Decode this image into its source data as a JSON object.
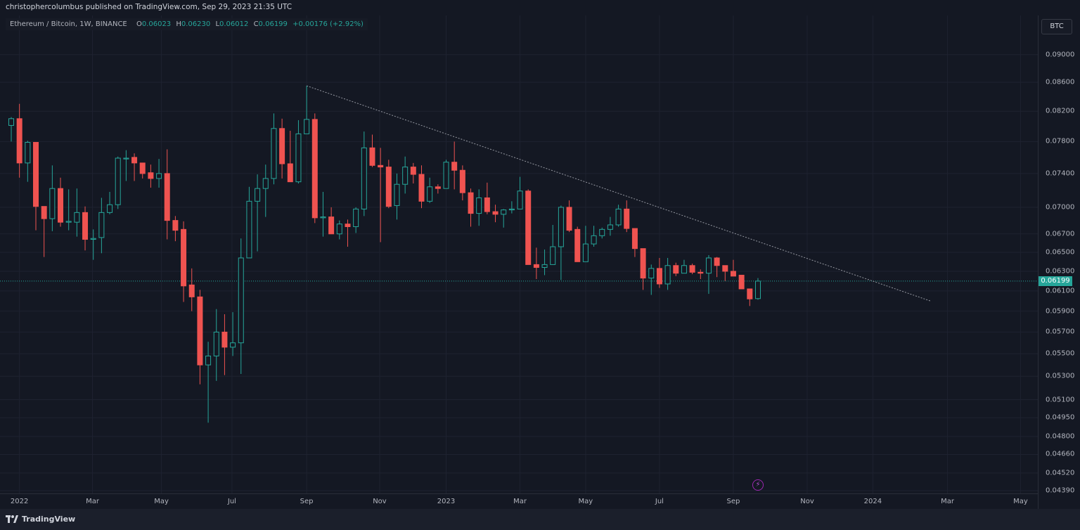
{
  "header": {
    "published": "christophercolumbus published on TradingView.com, Sep 29, 2023 21:35 UTC"
  },
  "legend": {
    "symbol": "Ethereum / Bitcoin, 1W, BINANCE",
    "o_label": "O",
    "o_value": "0.06023",
    "h_label": "H",
    "h_value": "0.06230",
    "l_label": "L",
    "l_value": "0.06012",
    "c_label": "C",
    "c_value": "0.06199",
    "change": "+0.00176 (+2.92%)"
  },
  "axis": {
    "currency_button": "BTC",
    "last_price": "0.06199"
  },
  "footer": {
    "brand": "TradingView"
  },
  "icons": {
    "alert": "lightning-icon",
    "logo": "tradingview-logo-icon"
  },
  "colors": {
    "up": "#26a69a",
    "down": "#ef5350",
    "background": "#141823",
    "grid": "#1e2230",
    "trendline": "#9598a1",
    "alert": "#9c27b0"
  },
  "chart_data": {
    "type": "candlestick",
    "title": "Ethereum / Bitcoin, 1W, BINANCE",
    "scale": "log",
    "ylim": [
      0.0437,
      0.096
    ],
    "xlim_weeks": [
      0,
      126
    ],
    "grid": true,
    "y_ticks": [
      "0.09000",
      "0.08600",
      "0.08200",
      "0.07800",
      "0.07400",
      "0.07000",
      "0.06700",
      "0.06500",
      "0.06300",
      "0.06100",
      "0.05900",
      "0.05700",
      "0.05500",
      "0.05300",
      "0.05100",
      "0.04950",
      "0.04800",
      "0.04660",
      "0.04520",
      "0.04390"
    ],
    "x_ticks": [
      {
        "label": "2022",
        "week": 1.0
      },
      {
        "label": "Mar",
        "week": 9.9
      },
      {
        "label": "May",
        "week": 18.3
      },
      {
        "label": "Jul",
        "week": 26.9
      },
      {
        "label": "Sep",
        "week": 36.0
      },
      {
        "label": "Nov",
        "week": 44.9
      },
      {
        "label": "2023",
        "week": 53.0
      },
      {
        "label": "Mar",
        "week": 62.0
      },
      {
        "label": "May",
        "week": 70.0
      },
      {
        "label": "Jul",
        "week": 79.0
      },
      {
        "label": "Sep",
        "week": 88.0
      },
      {
        "label": "Nov",
        "week": 97.0
      },
      {
        "label": "2024",
        "week": 105.0
      },
      {
        "label": "Mar",
        "week": 114.1
      },
      {
        "label": "May",
        "week": 123.0
      }
    ],
    "ohlc_columns": [
      "open",
      "high",
      "low",
      "close"
    ],
    "candles": [
      [
        0.0801,
        0.0812,
        0.078,
        0.081
      ],
      [
        0.081,
        0.083,
        0.0735,
        0.0753
      ],
      [
        0.0753,
        0.0781,
        0.073,
        0.0779
      ],
      [
        0.0779,
        0.0779,
        0.0674,
        0.0701
      ],
      [
        0.0701,
        0.0701,
        0.0645,
        0.0687
      ],
      [
        0.0687,
        0.075,
        0.0673,
        0.0722
      ],
      [
        0.0722,
        0.0735,
        0.0678,
        0.0683
      ],
      [
        0.0683,
        0.0721,
        0.0674,
        0.0684
      ],
      [
        0.0683,
        0.0722,
        0.0667,
        0.0694
      ],
      [
        0.0694,
        0.0701,
        0.0652,
        0.0664
      ],
      [
        0.0664,
        0.0675,
        0.0642,
        0.0665
      ],
      [
        0.0666,
        0.0711,
        0.0649,
        0.0694
      ],
      [
        0.0694,
        0.0718,
        0.0692,
        0.0703
      ],
      [
        0.0703,
        0.0761,
        0.0698,
        0.0759
      ],
      [
        0.0758,
        0.0769,
        0.0731,
        0.0759
      ],
      [
        0.076,
        0.0765,
        0.0731,
        0.0753
      ],
      [
        0.0753,
        0.0753,
        0.0734,
        0.074
      ],
      [
        0.0741,
        0.0751,
        0.0723,
        0.0734
      ],
      [
        0.0734,
        0.0758,
        0.0723,
        0.074
      ],
      [
        0.074,
        0.077,
        0.0664,
        0.0685
      ],
      [
        0.0685,
        0.069,
        0.0662,
        0.0674
      ],
      [
        0.0675,
        0.0684,
        0.0599,
        0.0615
      ],
      [
        0.0616,
        0.0633,
        0.059,
        0.0604
      ],
      [
        0.0604,
        0.0611,
        0.0523,
        0.054
      ],
      [
        0.054,
        0.0561,
        0.0491,
        0.0548
      ],
      [
        0.0548,
        0.0592,
        0.0526,
        0.057
      ],
      [
        0.057,
        0.0587,
        0.0531,
        0.0556
      ],
      [
        0.0556,
        0.0589,
        0.0548,
        0.056
      ],
      [
        0.056,
        0.0665,
        0.0532,
        0.0644
      ],
      [
        0.0644,
        0.0724,
        0.0644,
        0.0707
      ],
      [
        0.0707,
        0.0739,
        0.0651,
        0.0722
      ],
      [
        0.0722,
        0.0751,
        0.0689,
        0.0734
      ],
      [
        0.0734,
        0.0817,
        0.0727,
        0.0797
      ],
      [
        0.0797,
        0.081,
        0.0734,
        0.0752
      ],
      [
        0.0752,
        0.0794,
        0.073,
        0.073
      ],
      [
        0.073,
        0.0808,
        0.0728,
        0.079
      ],
      [
        0.079,
        0.0855,
        0.079,
        0.0809
      ],
      [
        0.0809,
        0.0817,
        0.0682,
        0.0688
      ],
      [
        0.0688,
        0.0718,
        0.0667,
        0.0689
      ],
      [
        0.0689,
        0.07,
        0.067,
        0.067
      ],
      [
        0.067,
        0.0685,
        0.0664,
        0.0681
      ],
      [
        0.0681,
        0.0686,
        0.0656,
        0.0678
      ],
      [
        0.0678,
        0.07,
        0.0671,
        0.0698
      ],
      [
        0.0698,
        0.0793,
        0.069,
        0.0772
      ],
      [
        0.0772,
        0.0789,
        0.0748,
        0.075
      ],
      [
        0.075,
        0.0772,
        0.0661,
        0.0748
      ],
      [
        0.0748,
        0.0757,
        0.0699,
        0.0701
      ],
      [
        0.0702,
        0.074,
        0.0686,
        0.0727
      ],
      [
        0.0727,
        0.0761,
        0.0716,
        0.0748
      ],
      [
        0.0748,
        0.0753,
        0.0728,
        0.0739
      ],
      [
        0.0739,
        0.075,
        0.0699,
        0.0707
      ],
      [
        0.0707,
        0.0735,
        0.0705,
        0.0724
      ],
      [
        0.0724,
        0.0727,
        0.0716,
        0.0722
      ],
      [
        0.0722,
        0.0757,
        0.0722,
        0.0754
      ],
      [
        0.0754,
        0.078,
        0.0721,
        0.0744
      ],
      [
        0.0744,
        0.075,
        0.0708,
        0.0717
      ],
      [
        0.0717,
        0.0722,
        0.0678,
        0.0693
      ],
      [
        0.0693,
        0.0721,
        0.0679,
        0.0711
      ],
      [
        0.0711,
        0.0729,
        0.0692,
        0.0695
      ],
      [
        0.0695,
        0.0703,
        0.0683,
        0.0692
      ],
      [
        0.0692,
        0.0698,
        0.0677,
        0.0697
      ],
      [
        0.0697,
        0.0707,
        0.0693,
        0.0698
      ],
      [
        0.0698,
        0.0736,
        0.0698,
        0.0719
      ],
      [
        0.0719,
        0.0721,
        0.0637,
        0.0637
      ],
      [
        0.0637,
        0.0655,
        0.0622,
        0.0634
      ],
      [
        0.0634,
        0.0653,
        0.0626,
        0.0637
      ],
      [
        0.0637,
        0.068,
        0.0637,
        0.0656
      ],
      [
        0.0656,
        0.0702,
        0.0621,
        0.07
      ],
      [
        0.07,
        0.0708,
        0.0672,
        0.0674
      ],
      [
        0.0675,
        0.0678,
        0.064,
        0.064
      ],
      [
        0.064,
        0.0679,
        0.064,
        0.0659
      ],
      [
        0.0659,
        0.0679,
        0.0656,
        0.0668
      ],
      [
        0.0668,
        0.0677,
        0.0665,
        0.0675
      ],
      [
        0.0675,
        0.0689,
        0.0668,
        0.068
      ],
      [
        0.068,
        0.0703,
        0.0678,
        0.0698
      ],
      [
        0.0698,
        0.0708,
        0.0672,
        0.0676
      ],
      [
        0.0676,
        0.0676,
        0.0645,
        0.0654
      ],
      [
        0.0654,
        0.0654,
        0.0611,
        0.0623
      ],
      [
        0.0623,
        0.0637,
        0.0606,
        0.0633
      ],
      [
        0.0633,
        0.0644,
        0.0613,
        0.0617
      ],
      [
        0.0617,
        0.0644,
        0.0611,
        0.0636
      ],
      [
        0.0636,
        0.0639,
        0.0625,
        0.0628
      ],
      [
        0.0628,
        0.0642,
        0.0628,
        0.0636
      ],
      [
        0.0636,
        0.0638,
        0.0627,
        0.0629
      ],
      [
        0.0629,
        0.0632,
        0.0622,
        0.0628
      ],
      [
        0.0628,
        0.0647,
        0.0607,
        0.0644
      ],
      [
        0.0644,
        0.0645,
        0.0624,
        0.0636
      ],
      [
        0.0636,
        0.0636,
        0.062,
        0.063
      ],
      [
        0.063,
        0.0642,
        0.0625,
        0.0625
      ],
      [
        0.0626,
        0.0626,
        0.0612,
        0.0612
      ],
      [
        0.0612,
        0.0612,
        0.0595,
        0.0602
      ],
      [
        0.06023,
        0.0623,
        0.06012,
        0.06199
      ]
    ],
    "last_price": 0.06199,
    "trendline": {
      "from_week": 36,
      "from_price": 0.0855,
      "to_week": 112,
      "to_price": 0.06
    }
  }
}
